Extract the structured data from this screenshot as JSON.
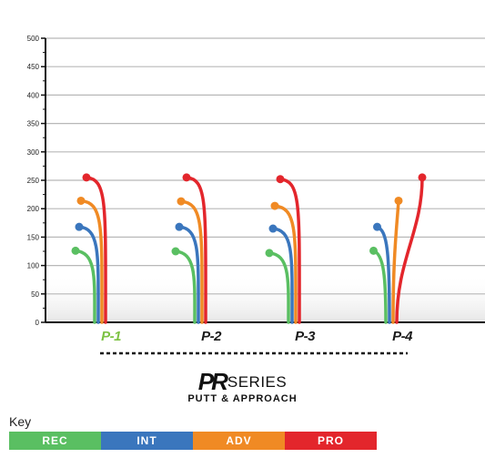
{
  "chart_data": {
    "type": "line",
    "ylim": [
      0,
      500
    ],
    "yticks": [
      "0",
      "50",
      "100",
      "150",
      "200",
      "250",
      "300",
      "350",
      "400",
      "450",
      "500"
    ],
    "grid": true,
    "categories": [
      "P-1",
      "P-2",
      "P-3",
      "P-4"
    ],
    "category_colors": [
      "#7cc242",
      "#1a1a1a",
      "#1a1a1a",
      "#1a1a1a"
    ],
    "series": [
      {
        "name": "REC",
        "color": "#5abf62",
        "values": [
          126,
          125,
          122,
          126
        ]
      },
      {
        "name": "INT",
        "color": "#3a76bd",
        "values": [
          168,
          168,
          165,
          168
        ]
      },
      {
        "name": "ADV",
        "color": "#f08a24",
        "values": [
          214,
          213,
          205,
          214
        ]
      },
      {
        "name": "PRO",
        "color": "#e3262c",
        "values": [
          255,
          255,
          252,
          255
        ]
      }
    ]
  },
  "footer": {
    "series_mark": "PR",
    "series_word": "SERIES",
    "subtitle": "PUTT & APPROACH"
  },
  "key": {
    "title": "Key",
    "items": [
      {
        "label": "REC",
        "color": "#5abf62"
      },
      {
        "label": "INT",
        "color": "#3a76bd"
      },
      {
        "label": "ADV",
        "color": "#f08a24"
      },
      {
        "label": "PRO",
        "color": "#e3262c"
      }
    ]
  }
}
